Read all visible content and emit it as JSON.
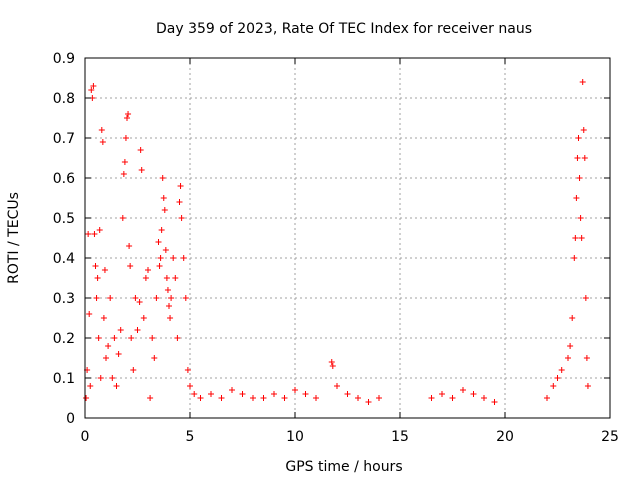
{
  "chart_data": {
    "type": "scatter",
    "title": "Day 359 of 2023, Rate Of TEC Index for receiver naus",
    "xlabel": "GPS time / hours",
    "ylabel": "ROTI / TECUs",
    "xlim": [
      0,
      25
    ],
    "ylim": [
      0,
      0.9
    ],
    "xticks": [
      0,
      5,
      10,
      15,
      20,
      25
    ],
    "yticks": [
      0,
      0.1,
      0.2,
      0.3,
      0.4,
      0.5,
      0.6,
      0.7,
      0.8,
      0.9
    ],
    "xtick_labels": [
      "0",
      "5",
      "10",
      "15",
      "20",
      "25"
    ],
    "ytick_labels": [
      "0",
      "0.1",
      "0.2",
      "0.3",
      "0.4",
      "0.5",
      "0.6",
      "0.7",
      "0.8",
      "0.9"
    ],
    "grid": true,
    "marker": "+",
    "marker_color": "#ff0000",
    "series": [
      {
        "points": [
          [
            0.05,
            0.05
          ],
          [
            0.1,
            0.12
          ],
          [
            0.15,
            0.46
          ],
          [
            0.2,
            0.26
          ],
          [
            0.25,
            0.08
          ],
          [
            0.3,
            0.82
          ],
          [
            0.35,
            0.8
          ],
          [
            0.4,
            0.83
          ],
          [
            0.45,
            0.46
          ],
          [
            0.5,
            0.38
          ],
          [
            0.55,
            0.3
          ],
          [
            0.6,
            0.35
          ],
          [
            0.65,
            0.2
          ],
          [
            0.7,
            0.47
          ],
          [
            0.75,
            0.1
          ],
          [
            0.8,
            0.72
          ],
          [
            0.85,
            0.69
          ],
          [
            0.9,
            0.25
          ],
          [
            0.95,
            0.37
          ],
          [
            1.0,
            0.15
          ],
          [
            1.1,
            0.18
          ],
          [
            1.2,
            0.3
          ],
          [
            1.3,
            0.1
          ],
          [
            1.4,
            0.2
          ],
          [
            1.5,
            0.08
          ],
          [
            1.6,
            0.16
          ],
          [
            1.7,
            0.22
          ],
          [
            1.8,
            0.5
          ],
          [
            1.85,
            0.61
          ],
          [
            1.9,
            0.64
          ],
          [
            1.95,
            0.7
          ],
          [
            2.0,
            0.75
          ],
          [
            2.05,
            0.76
          ],
          [
            2.1,
            0.43
          ],
          [
            2.15,
            0.38
          ],
          [
            2.2,
            0.2
          ],
          [
            2.3,
            0.12
          ],
          [
            2.4,
            0.3
          ],
          [
            2.5,
            0.22
          ],
          [
            2.6,
            0.29
          ],
          [
            2.65,
            0.67
          ],
          [
            2.7,
            0.62
          ],
          [
            2.8,
            0.25
          ],
          [
            2.9,
            0.35
          ],
          [
            3.0,
            0.37
          ],
          [
            3.1,
            0.05
          ],
          [
            3.2,
            0.2
          ],
          [
            3.3,
            0.15
          ],
          [
            3.4,
            0.3
          ],
          [
            3.5,
            0.44
          ],
          [
            3.55,
            0.38
          ],
          [
            3.6,
            0.4
          ],
          [
            3.65,
            0.47
          ],
          [
            3.7,
            0.6
          ],
          [
            3.75,
            0.55
          ],
          [
            3.8,
            0.52
          ],
          [
            3.85,
            0.42
          ],
          [
            3.9,
            0.35
          ],
          [
            3.95,
            0.32
          ],
          [
            4.0,
            0.28
          ],
          [
            4.05,
            0.25
          ],
          [
            4.1,
            0.3
          ],
          [
            4.2,
            0.4
          ],
          [
            4.3,
            0.35
          ],
          [
            4.4,
            0.2
          ],
          [
            4.5,
            0.54
          ],
          [
            4.55,
            0.58
          ],
          [
            4.6,
            0.5
          ],
          [
            4.7,
            0.4
          ],
          [
            4.8,
            0.3
          ],
          [
            4.9,
            0.12
          ],
          [
            5.0,
            0.08
          ],
          [
            5.2,
            0.06
          ],
          [
            5.5,
            0.05
          ],
          [
            6.0,
            0.06
          ],
          [
            6.5,
            0.05
          ],
          [
            7.0,
            0.07
          ],
          [
            7.5,
            0.06
          ],
          [
            8.0,
            0.05
          ],
          [
            8.5,
            0.05
          ],
          [
            9.0,
            0.06
          ],
          [
            9.5,
            0.05
          ],
          [
            10.0,
            0.07
          ],
          [
            10.5,
            0.06
          ],
          [
            11.0,
            0.05
          ],
          [
            11.75,
            0.14
          ],
          [
            11.8,
            0.13
          ],
          [
            12.0,
            0.08
          ],
          [
            12.5,
            0.06
          ],
          [
            13.0,
            0.05
          ],
          [
            13.5,
            0.04
          ],
          [
            14.0,
            0.05
          ],
          [
            16.5,
            0.05
          ],
          [
            17.0,
            0.06
          ],
          [
            17.5,
            0.05
          ],
          [
            18.0,
            0.07
          ],
          [
            18.5,
            0.06
          ],
          [
            19.0,
            0.05
          ],
          [
            19.5,
            0.04
          ],
          [
            22.0,
            0.05
          ],
          [
            22.3,
            0.08
          ],
          [
            22.5,
            0.1
          ],
          [
            22.7,
            0.12
          ],
          [
            23.0,
            0.15
          ],
          [
            23.1,
            0.18
          ],
          [
            23.2,
            0.25
          ],
          [
            23.3,
            0.4
          ],
          [
            23.35,
            0.45
          ],
          [
            23.4,
            0.55
          ],
          [
            23.45,
            0.65
          ],
          [
            23.5,
            0.7
          ],
          [
            23.55,
            0.6
          ],
          [
            23.6,
            0.5
          ],
          [
            23.65,
            0.45
          ],
          [
            23.7,
            0.84
          ],
          [
            23.75,
            0.72
          ],
          [
            23.8,
            0.65
          ],
          [
            23.85,
            0.3
          ],
          [
            23.9,
            0.15
          ],
          [
            23.95,
            0.08
          ]
        ]
      }
    ]
  }
}
